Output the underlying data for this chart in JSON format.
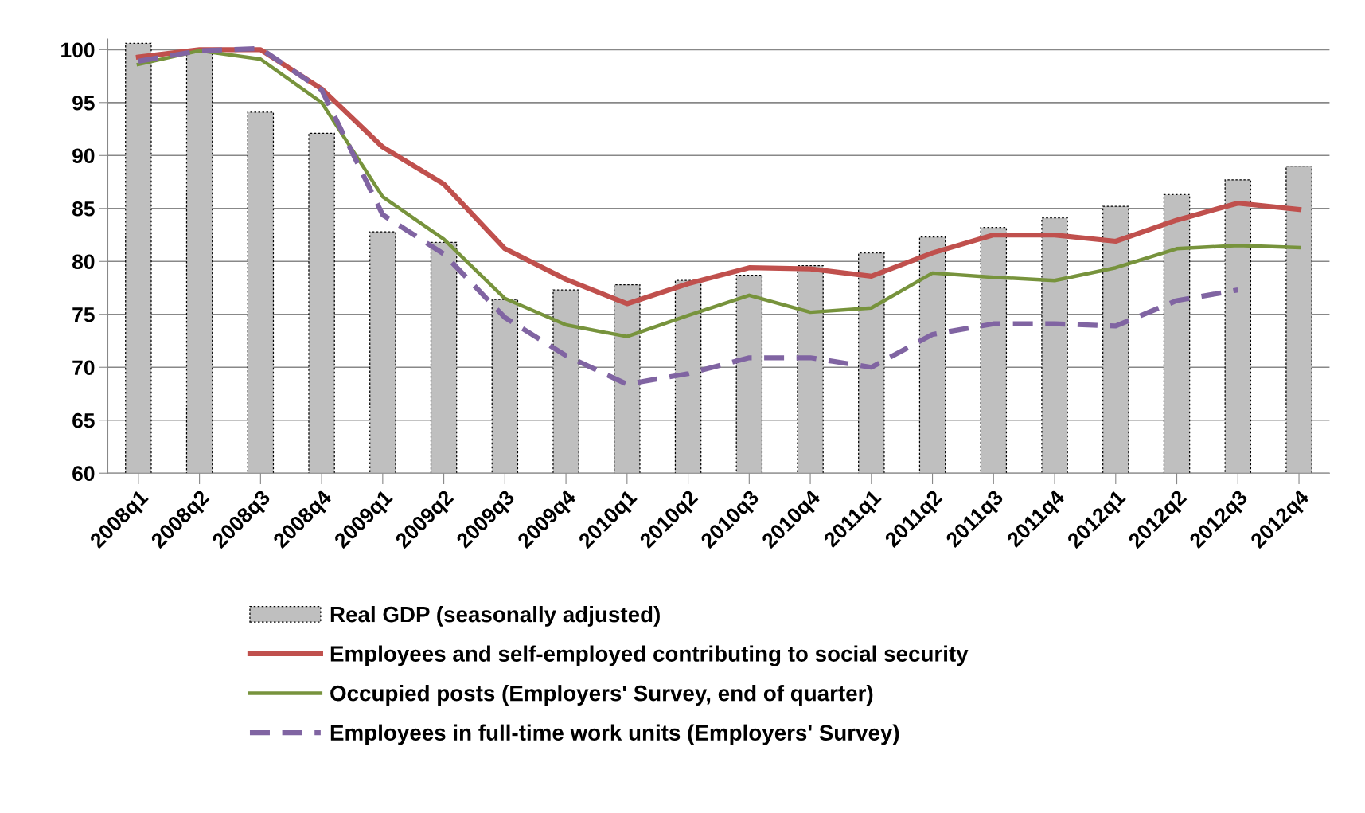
{
  "chart_data": {
    "type": "bar",
    "categories": [
      "2008q1",
      "2008q2",
      "2008q3",
      "2008q4",
      "2009q1",
      "2009q2",
      "2009q3",
      "2009q4",
      "2010q1",
      "2010q2",
      "2010q3",
      "2010q4",
      "2011q1",
      "2011q2",
      "2011q3",
      "2011q4",
      "2012q1",
      "2012q2",
      "2012q3",
      "2012q4"
    ],
    "series": [
      {
        "name": "Real GDP (seasonally adjusted)",
        "color": "#bfbfbf",
        "values": [
          100.6,
          100,
          94.1,
          92.1,
          82.8,
          81.8,
          76.4,
          77.3,
          77.8,
          78.2,
          78.7,
          79.6,
          80.8,
          82.3,
          83.2,
          84.1,
          85.2,
          86.3,
          87.7,
          89.0
        ]
      },
      {
        "name": "Employees and self-employed contributing to social security",
        "type": "line",
        "color": "#c0504d",
        "line_style": "solid",
        "values": [
          99.3,
          100,
          100,
          96.3,
          90.8,
          87.3,
          81.2,
          78.3,
          76.0,
          77.9,
          79.4,
          79.3,
          78.6,
          80.8,
          82.5,
          82.5,
          81.9,
          83.9,
          85.5,
          84.9
        ]
      },
      {
        "name": "Occupied posts (Employers' Survey, end of quarter)",
        "type": "line",
        "color": "#77933c",
        "line_style": "solid",
        "values": [
          98.6,
          99.9,
          99.1,
          95.0,
          86.1,
          82.1,
          76.5,
          74.0,
          72.9,
          74.9,
          76.8,
          75.2,
          75.6,
          78.9,
          78.5,
          78.2,
          79.4,
          81.2,
          81.5,
          81.3
        ]
      },
      {
        "name": "Employees in full-time work units (Employers' Survey)",
        "type": "line",
        "color": "#8064a2",
        "line_style": "dashed",
        "values": [
          98.9,
          99.9,
          100.1,
          96.2,
          84.4,
          80.7,
          74.7,
          71.1,
          68.4,
          69.4,
          70.9,
          70.9,
          70.0,
          73.1,
          74.1,
          74.1,
          73.9,
          76.3,
          77.3,
          null
        ]
      }
    ],
    "ylim": [
      60,
      101
    ],
    "yticks": [
      60,
      65,
      70,
      75,
      80,
      85,
      90,
      95,
      100
    ],
    "grid": "y",
    "legend": "bottom",
    "marker": "none"
  }
}
